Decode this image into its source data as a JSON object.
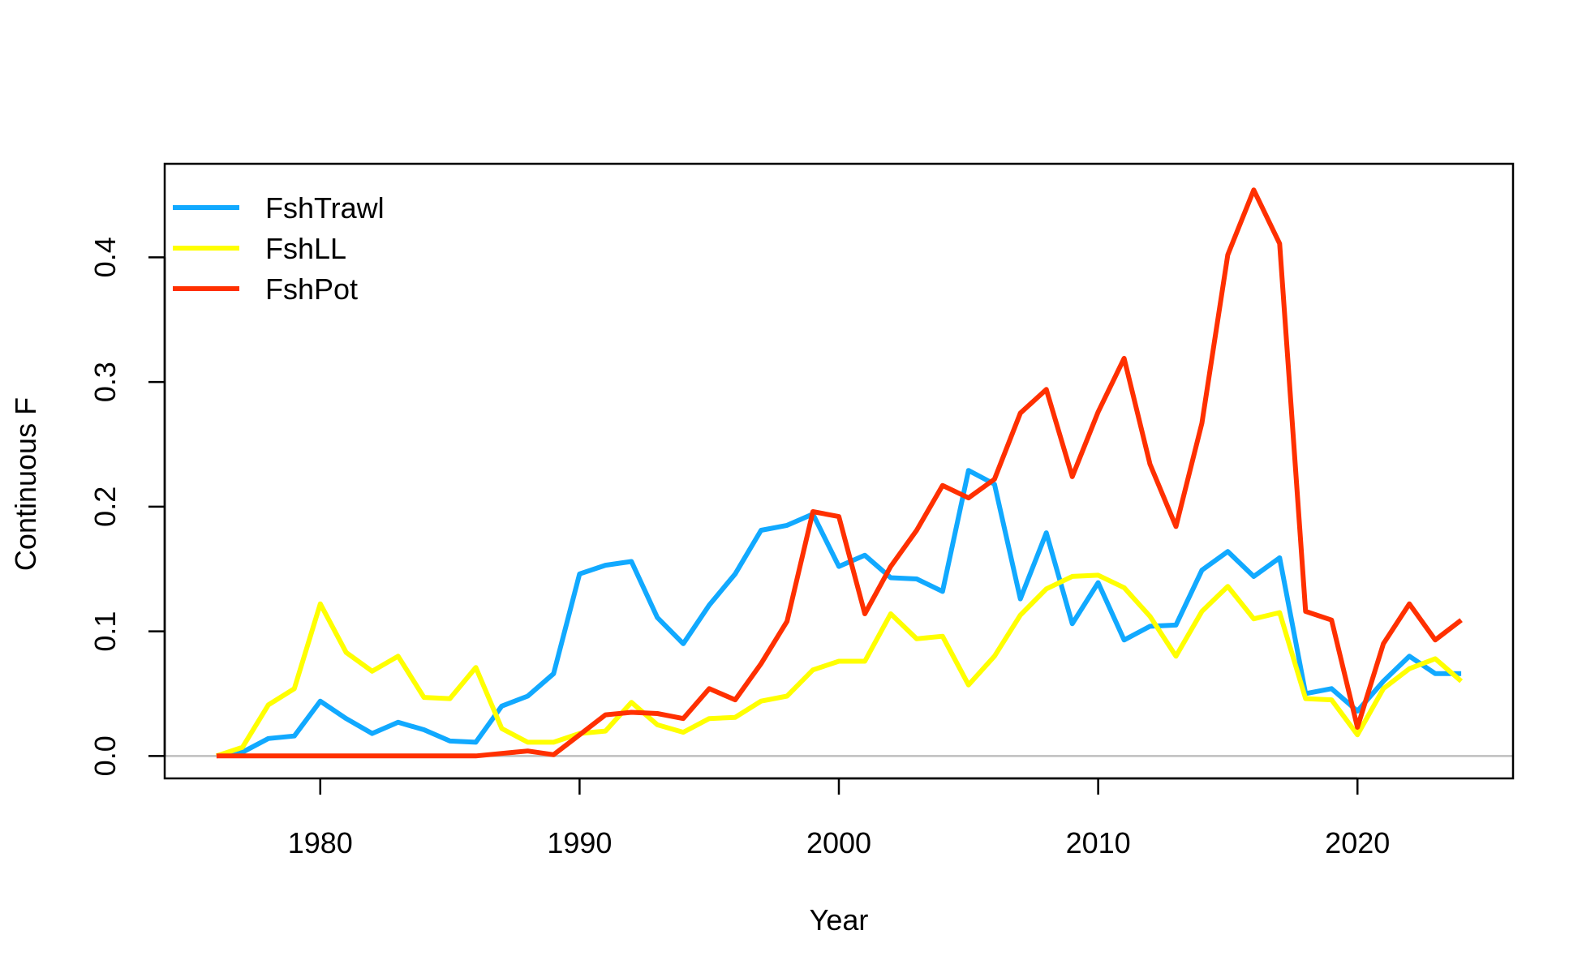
{
  "chart_data": {
    "type": "line",
    "xlabel": "Year",
    "ylabel": "Continuous F",
    "xlim": [
      1974,
      2026
    ],
    "ylim": [
      -0.018,
      0.475
    ],
    "x_ticks": [
      1980,
      1990,
      2000,
      2010,
      2020
    ],
    "x_tick_labels": [
      "1980",
      "1990",
      "2000",
      "2010",
      "2020"
    ],
    "y_ticks": [
      0.0,
      0.1,
      0.2,
      0.3,
      0.4
    ],
    "y_tick_labels": [
      "0.0",
      "0.1",
      "0.2",
      "0.3",
      "0.4"
    ],
    "reference_line": {
      "y": 0,
      "color": "#bebebe"
    },
    "grid": false,
    "legend_position": "top-left",
    "x": [
      1976,
      1977,
      1978,
      1979,
      1980,
      1981,
      1982,
      1983,
      1984,
      1985,
      1986,
      1987,
      1988,
      1989,
      1990,
      1991,
      1992,
      1993,
      1994,
      1995,
      1996,
      1997,
      1998,
      1999,
      2000,
      2001,
      2002,
      2003,
      2004,
      2005,
      2006,
      2007,
      2008,
      2009,
      2010,
      2011,
      2012,
      2013,
      2014,
      2015,
      2016,
      2017,
      2018,
      2019,
      2020,
      2021,
      2022,
      2023,
      2024
    ],
    "series": [
      {
        "name": "FshTrawl",
        "color": "#11a9ff",
        "values": [
          0.0,
          0.003,
          0.014,
          0.016,
          0.044,
          0.03,
          0.018,
          0.027,
          0.021,
          0.012,
          0.011,
          0.04,
          0.048,
          0.066,
          0.146,
          0.153,
          0.156,
          0.111,
          0.09,
          0.121,
          0.146,
          0.181,
          0.185,
          0.194,
          0.152,
          0.161,
          0.143,
          0.142,
          0.132,
          0.229,
          0.218,
          0.126,
          0.179,
          0.106,
          0.139,
          0.093,
          0.104,
          0.105,
          0.149,
          0.164,
          0.144,
          0.159,
          0.05,
          0.054,
          0.036,
          0.06,
          0.08,
          0.066,
          0.066
        ]
      },
      {
        "name": "FshLL",
        "color": "#ffff00",
        "values": [
          0.0,
          0.007,
          0.041,
          0.054,
          0.122,
          0.083,
          0.068,
          0.08,
          0.047,
          0.046,
          0.071,
          0.022,
          0.011,
          0.011,
          0.018,
          0.02,
          0.043,
          0.025,
          0.019,
          0.03,
          0.031,
          0.044,
          0.048,
          0.069,
          0.076,
          0.076,
          0.114,
          0.094,
          0.096,
          0.057,
          0.08,
          0.113,
          0.134,
          0.144,
          0.145,
          0.135,
          0.112,
          0.08,
          0.116,
          0.136,
          0.11,
          0.115,
          0.046,
          0.045,
          0.017,
          0.054,
          0.07,
          0.078,
          0.06
        ]
      },
      {
        "name": "FshPot",
        "color": "#ff3000",
        "values": [
          0.0,
          0.0,
          0.0,
          0.0,
          0.0,
          0.0,
          0.0,
          0.0,
          0.0,
          0.0,
          0.0,
          0.002,
          0.004,
          0.001,
          0.017,
          0.033,
          0.035,
          0.034,
          0.03,
          0.054,
          0.045,
          0.074,
          0.108,
          0.196,
          0.192,
          0.114,
          0.152,
          0.181,
          0.217,
          0.207,
          0.222,
          0.275,
          0.294,
          0.224,
          0.276,
          0.319,
          0.234,
          0.184,
          0.267,
          0.402,
          0.454,
          0.411,
          0.116,
          0.109,
          0.023,
          0.09,
          0.122,
          0.093,
          0.109
        ]
      }
    ]
  }
}
